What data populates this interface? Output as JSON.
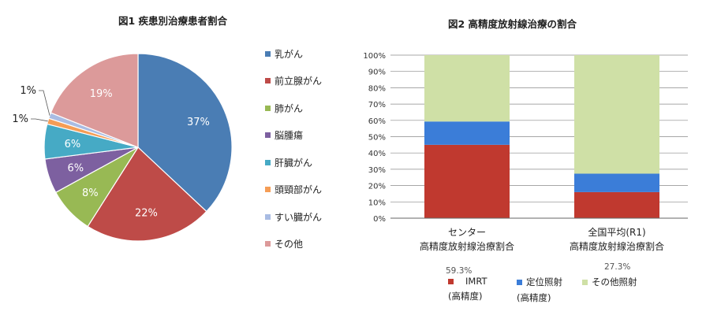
{
  "chart_data": [
    {
      "type": "pie",
      "title": "図1 疾患別治療患者割合",
      "slices": [
        {
          "label": "乳がん",
          "value": 37,
          "data_label": "37%",
          "color": "#4a7db4"
        },
        {
          "label": "前立腺がん",
          "value": 22,
          "data_label": "22%",
          "color": "#be4b48"
        },
        {
          "label": "肺がん",
          "value": 8,
          "data_label": "8%",
          "color": "#98b954"
        },
        {
          "label": "脳腫瘍",
          "value": 6,
          "data_label": "6%",
          "color": "#7d60a0"
        },
        {
          "label": "肝臓がん",
          "value": 6,
          "data_label": "6%",
          "color": "#46aac5"
        },
        {
          "label": "頭頸部がん",
          "value": 1,
          "data_label": "1%",
          "color": "#f59d56"
        },
        {
          "label": "すい臓がん",
          "value": 1,
          "data_label": "1%",
          "color": "#a9bce3"
        },
        {
          "label": "その他",
          "value": 19,
          "data_label": "19%",
          "color": "#dc9a9a"
        }
      ],
      "legend_position": "right"
    },
    {
      "type": "bar",
      "stacked": true,
      "title": "図2 高精度放射線治療の割合",
      "categories": [
        {
          "line1": "センター",
          "line2": "高精度放射線治療割合"
        },
        {
          "line1": "全国平均(R1)",
          "line2": "高精度放射線治療割合"
        }
      ],
      "series": [
        {
          "name": "IMRT",
          "sub": "(高精度)",
          "values": [
            45,
            16
          ],
          "color": "#c0392f"
        },
        {
          "name": "定位照射",
          "sub": "(高精度)",
          "values": [
            14.3,
            11.3
          ],
          "color": "#3b7dd8"
        },
        {
          "name": "その他照射",
          "sub": "",
          "values": [
            40.7,
            72.7
          ],
          "color": "#cfe0a6"
        }
      ],
      "ylim": [
        0,
        100
      ],
      "yticks": [
        "0%",
        "10%",
        "20%",
        "30%",
        "40%",
        "50%",
        "60%",
        "70%",
        "80%",
        "90%",
        "100%"
      ],
      "grid": true,
      "legend_position": "bottom",
      "annotations": [
        "59.3%",
        "27.3%"
      ]
    }
  ]
}
